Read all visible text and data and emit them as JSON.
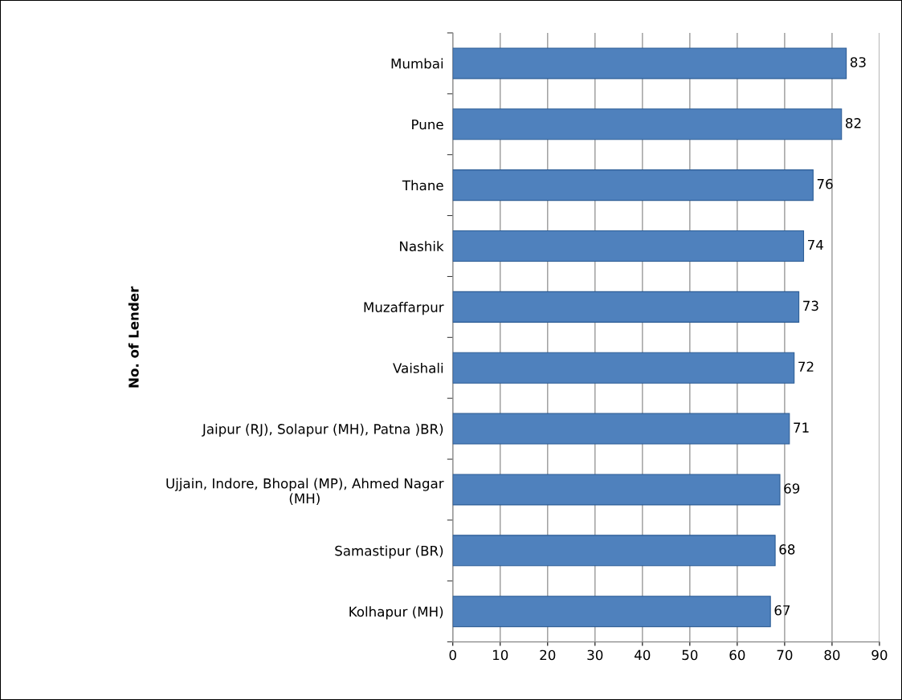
{
  "chart_data": {
    "type": "bar",
    "orientation": "horizontal",
    "ylabel": "No. of Lender",
    "categories": [
      "Mumbai",
      "Pune",
      "Thane",
      "Nashik",
      "Muzaffarpur",
      "Vaishali",
      "Jaipur (RJ), Solapur (MH), Patna )BR)",
      "Ujjain, Indore, Bhopal (MP), Ahmed Nagar (MH)",
      "Samastipur (BR)",
      "Kolhapur (MH)"
    ],
    "values": [
      83,
      82,
      76,
      74,
      73,
      72,
      71,
      69,
      68,
      67
    ],
    "color": "#4f81bd",
    "xlim": [
      0,
      90
    ],
    "xticks": [
      0,
      10,
      20,
      30,
      40,
      50,
      60,
      70,
      80,
      90
    ],
    "grid": "x",
    "data_labels": true,
    "legend": false
  }
}
